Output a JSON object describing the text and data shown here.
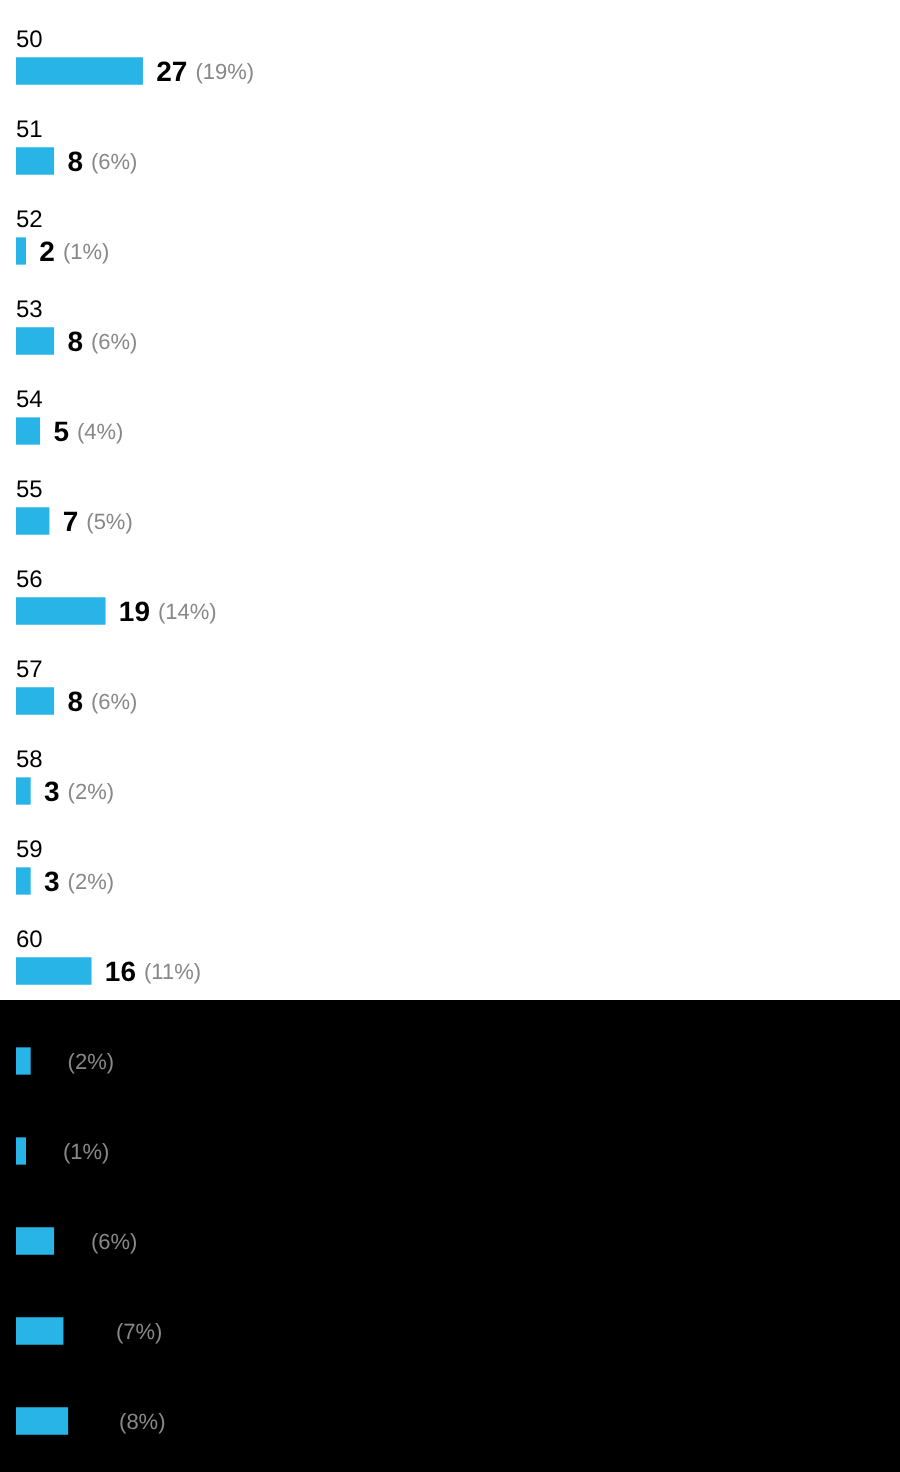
{
  "chart_data": {
    "type": "bar",
    "orientation": "horizontal",
    "relative": false,
    "categories": [
      "50",
      "51",
      "52",
      "53",
      "54",
      "55",
      "56",
      "57",
      "58",
      "59",
      "60",
      null,
      null,
      null,
      null,
      null
    ],
    "values": [
      27,
      8,
      2,
      8,
      5,
      7,
      19,
      8,
      3,
      3,
      16,
      3,
      2,
      8,
      10,
      11
    ],
    "color": "#29b4e8",
    "value_labels": [
      "27 (19%)",
      "8 (6%)",
      "2 (1%)",
      "8 (6%)",
      "5 (4%)",
      "7 (5%)",
      "19 (14%)",
      "8 (6%)",
      "3 (2%)",
      "3 (2%)",
      "16 (11%)",
      "3 (2%)",
      "2 (1%)",
      "8 (6%)",
      "10 (7%)",
      "11 (8%)"
    ],
    "legend": false,
    "tick_labels": false
  }
}
